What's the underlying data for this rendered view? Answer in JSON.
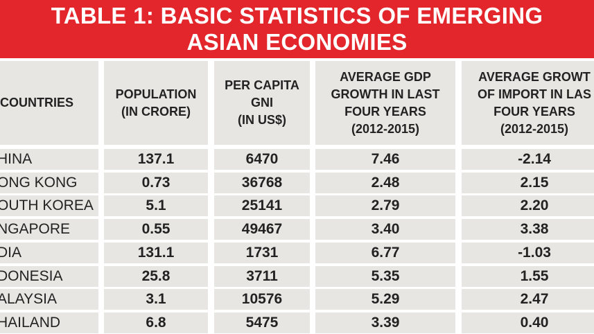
{
  "title": {
    "line1": "TABLE 1: BASIC STATISTICS OF EMERGING",
    "line2": "ASIAN ECONOMIES"
  },
  "colors": {
    "banner": "#e2262c",
    "cell": "#e7e6e2",
    "text": "#222222"
  },
  "headers": [
    "COUNTRIES",
    "POPULATION\n(IN CRORE)",
    "PER CAPITA\nGNI\n(IN US$)",
    "AVERAGE GDP\nGROWTH IN LAST\nFOUR YEARS\n(2012-2015)",
    "AVERAGE GROWT\nOF IMPORT IN LAS\nFOUR YEARS\n(2012-2015)"
  ],
  "rows": [
    {
      "country": "HINA",
      "population": "137.1",
      "gni": "6470",
      "gdp_growth": "7.46",
      "import_growth": "-2.14"
    },
    {
      "country": "ONG KONG",
      "population": "0.73",
      "gni": "36768",
      "gdp_growth": "2.48",
      "import_growth": "2.15"
    },
    {
      "country": "OUTH KOREA",
      "population": "5.1",
      "gni": "25141",
      "gdp_growth": "2.79",
      "import_growth": "2.20"
    },
    {
      "country": "NGAPORE",
      "population": "0.55",
      "gni": "49467",
      "gdp_growth": "3.40",
      "import_growth": "3.38"
    },
    {
      "country": "DIA",
      "population": "131.1",
      "gni": "1731",
      "gdp_growth": "6.77",
      "import_growth": "-1.03"
    },
    {
      "country": "DONESIA",
      "population": "25.8",
      "gni": "3711",
      "gdp_growth": "5.35",
      "import_growth": "1.55"
    },
    {
      "country": "ALAYSIA",
      "population": "3.1",
      "gni": "10576",
      "gdp_growth": "5.29",
      "import_growth": "2.47"
    },
    {
      "country": "HAILAND",
      "population": "6.8",
      "gni": "5475",
      "gdp_growth": "3.39",
      "import_growth": "0.40"
    }
  ]
}
